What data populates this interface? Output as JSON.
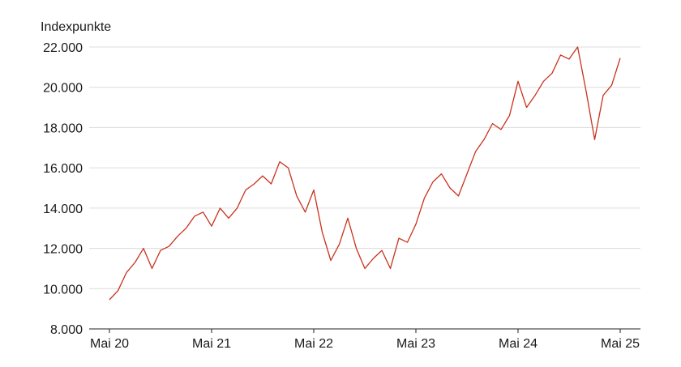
{
  "chart_data": {
    "type": "line",
    "title": "",
    "ylabel": "Indexpunkte",
    "xlabel": "",
    "ylim": [
      8000,
      22000
    ],
    "y_ticks": [
      8000,
      10000,
      12000,
      14000,
      16000,
      18000,
      20000,
      22000
    ],
    "y_tick_labels": [
      "8.000",
      "10.000",
      "12.000",
      "14.000",
      "16.000",
      "18.000",
      "20.000",
      "22.000"
    ],
    "x_range": [
      "2020-05",
      "2025-05"
    ],
    "x_tick_labels": [
      "Mai 20",
      "Mai 21",
      "Mai 22",
      "Mai 23",
      "Mai 24",
      "Mai 25"
    ],
    "x_tick_dates": [
      "2020-05",
      "2021-05",
      "2022-05",
      "2023-05",
      "2024-05",
      "2025-05"
    ],
    "grid": true,
    "line_color": "#c8321e",
    "series": [
      {
        "points": [
          [
            "2020-05",
            9450
          ],
          [
            "2020-06",
            9900
          ],
          [
            "2020-07",
            10800
          ],
          [
            "2020-08",
            11300
          ],
          [
            "2020-09",
            12000
          ],
          [
            "2020-10",
            11000
          ],
          [
            "2020-11",
            11900
          ],
          [
            "2020-12",
            12100
          ],
          [
            "2021-01",
            12600
          ],
          [
            "2021-02",
            13000
          ],
          [
            "2021-03",
            13600
          ],
          [
            "2021-04",
            13800
          ],
          [
            "2021-05",
            13100
          ],
          [
            "2021-06",
            14000
          ],
          [
            "2021-07",
            13500
          ],
          [
            "2021-08",
            14000
          ],
          [
            "2021-09",
            14900
          ],
          [
            "2021-10",
            15200
          ],
          [
            "2021-11",
            15600
          ],
          [
            "2021-12",
            15200
          ],
          [
            "2022-01",
            16300
          ],
          [
            "2022-02",
            16000
          ],
          [
            "2022-03",
            14600
          ],
          [
            "2022-04",
            13800
          ],
          [
            "2022-05",
            14900
          ],
          [
            "2022-06",
            12800
          ],
          [
            "2022-07",
            11400
          ],
          [
            "2022-08",
            12200
          ],
          [
            "2022-09",
            13500
          ],
          [
            "2022-10",
            12000
          ],
          [
            "2022-11",
            11000
          ],
          [
            "2022-12",
            11500
          ],
          [
            "2023-01",
            11900
          ],
          [
            "2023-02",
            11000
          ],
          [
            "2023-03",
            12500
          ],
          [
            "2023-04",
            12300
          ],
          [
            "2023-05",
            13200
          ],
          [
            "2023-06",
            14500
          ],
          [
            "2023-07",
            15300
          ],
          [
            "2023-08",
            15700
          ],
          [
            "2023-09",
            15000
          ],
          [
            "2023-10",
            14600
          ],
          [
            "2023-11",
            15700
          ],
          [
            "2023-12",
            16800
          ],
          [
            "2024-01",
            17400
          ],
          [
            "2024-02",
            18200
          ],
          [
            "2024-03",
            17900
          ],
          [
            "2024-04",
            18600
          ],
          [
            "2024-05",
            20300
          ],
          [
            "2024-06",
            19000
          ],
          [
            "2024-07",
            19600
          ],
          [
            "2024-08",
            20300
          ],
          [
            "2024-09",
            20700
          ],
          [
            "2024-10",
            21600
          ],
          [
            "2024-11",
            21400
          ],
          [
            "2024-12",
            22000
          ],
          [
            "2025-01",
            19800
          ],
          [
            "2025-02",
            17400
          ],
          [
            "2025-03",
            19600
          ],
          [
            "2025-04",
            20100
          ],
          [
            "2025-05",
            21450
          ]
        ]
      }
    ]
  }
}
